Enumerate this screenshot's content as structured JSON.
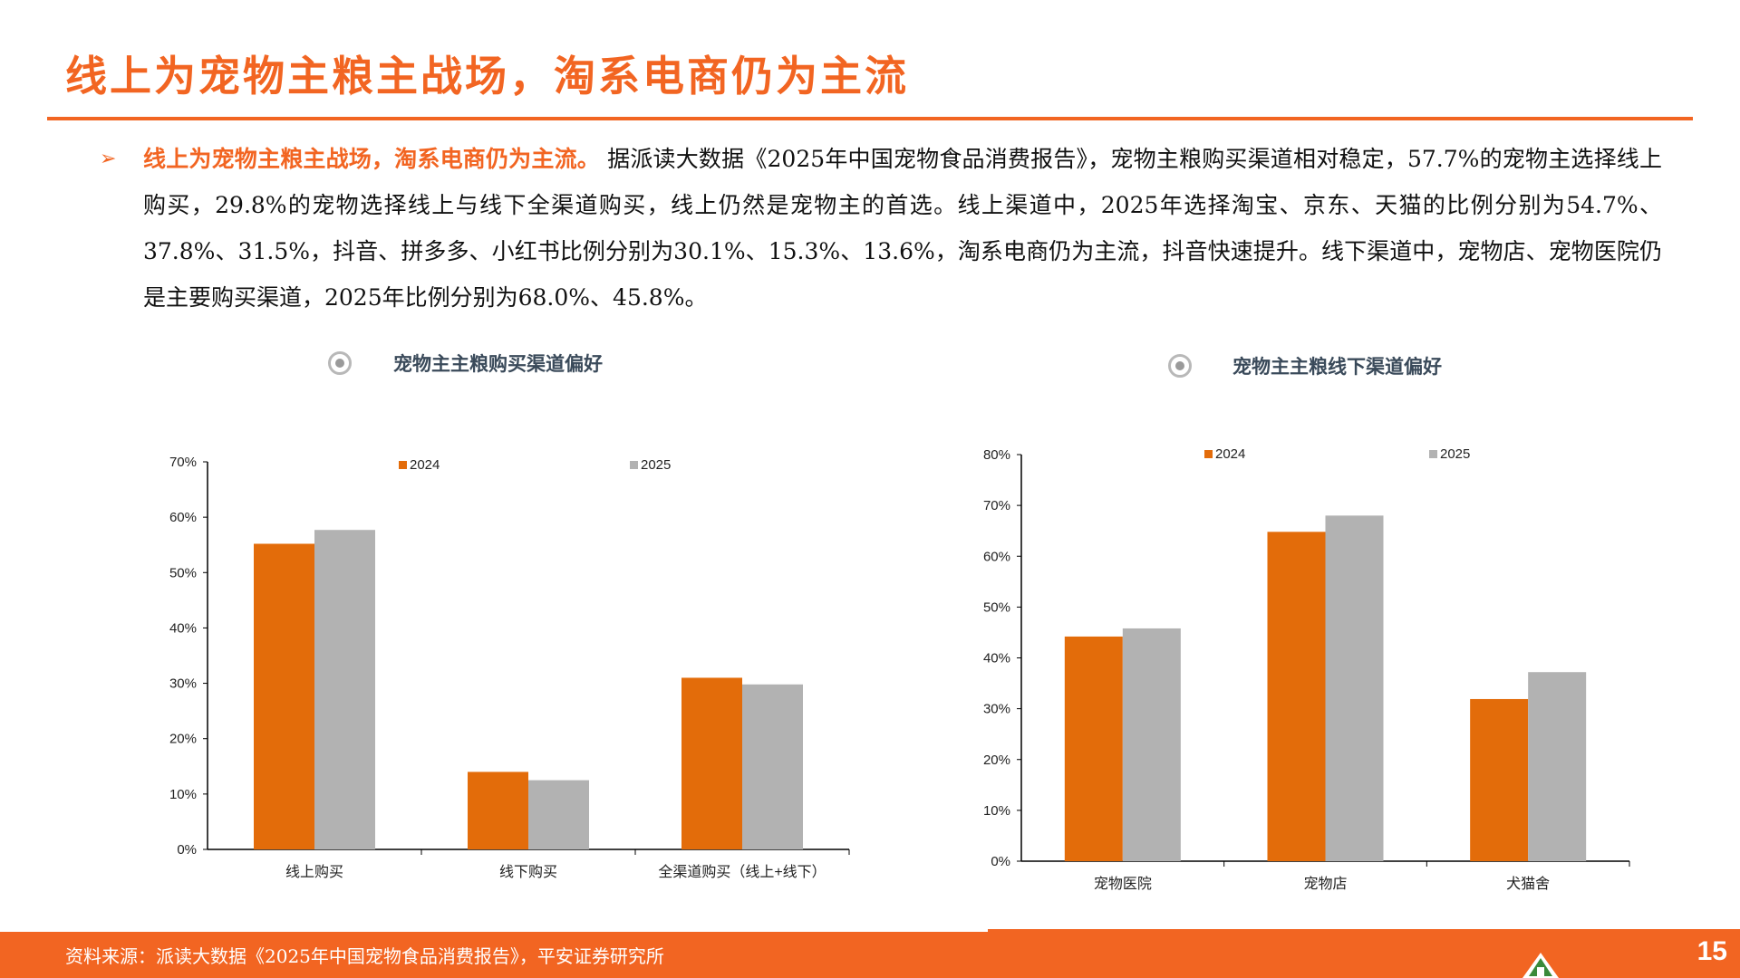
{
  "page": {
    "title": "线上为宠物主粮主战场，淘系电商仍为主流",
    "bullet": {
      "heading": "线上为宠物主粮主战场，淘系电商仍为主流。",
      "body": "据派读大数据《2025年中国宠物食品消费报告》，宠物主粮购买渠道相对稳定，57.7%的宠物主选择线上购买，29.8%的宠物选择线上与线下全渠道购买，线上仍然是宠物主的首选。线上渠道中，2025年选择淘宝、京东、天猫的比例分别为54.7%、37.8%、31.5%，抖音、拼多多、小红书比例分别为30.1%、15.3%、13.6%，淘系电商仍为主流，抖音快速提升。线下渠道中，宠物店、宠物医院仍是主要购买渠道，2025年比例分别为68.0%、45.8%。"
    },
    "footer": {
      "source": "资料来源：派读大数据《2025年中国宠物食品消费报告》，平安证券研究所",
      "page_number": "15"
    },
    "colors": {
      "accent": "#f26522",
      "bar_2024": "#e36c0a",
      "bar_2025": "#b2b2b2"
    },
    "icons": {
      "chart_title_marker": "radio-circle-icon",
      "bullet_marker": "arrow-bullet-icon"
    }
  },
  "chart_data": [
    {
      "type": "bar",
      "title": "宠物主主粮购买渠道偏好",
      "categories": [
        "线上购买",
        "线下购买",
        "全渠道购买（线上+线下）"
      ],
      "series": [
        {
          "name": "2024",
          "values": [
            55.2,
            14.0,
            31.0
          ]
        },
        {
          "name": "2025",
          "values": [
            57.7,
            12.5,
            29.8
          ]
        }
      ],
      "ylim": [
        0,
        70
      ],
      "yticks": [
        "0%",
        "10%",
        "20%",
        "30%",
        "40%",
        "50%",
        "60%",
        "70%"
      ],
      "xlabel": "",
      "ylabel": "",
      "legend": "top",
      "grid": false
    },
    {
      "type": "bar",
      "title": "宠物主主粮线下渠道偏好",
      "categories": [
        "宠物医院",
        "宠物店",
        "犬猫舍"
      ],
      "series": [
        {
          "name": "2024",
          "values": [
            44.2,
            64.8,
            31.9
          ]
        },
        {
          "name": "2025",
          "values": [
            45.8,
            68.0,
            37.2
          ]
        }
      ],
      "ylim": [
        0,
        80
      ],
      "yticks": [
        "0%",
        "10%",
        "20%",
        "30%",
        "40%",
        "50%",
        "60%",
        "70%",
        "80%"
      ],
      "xlabel": "",
      "ylabel": "",
      "legend": "top",
      "grid": false
    }
  ]
}
